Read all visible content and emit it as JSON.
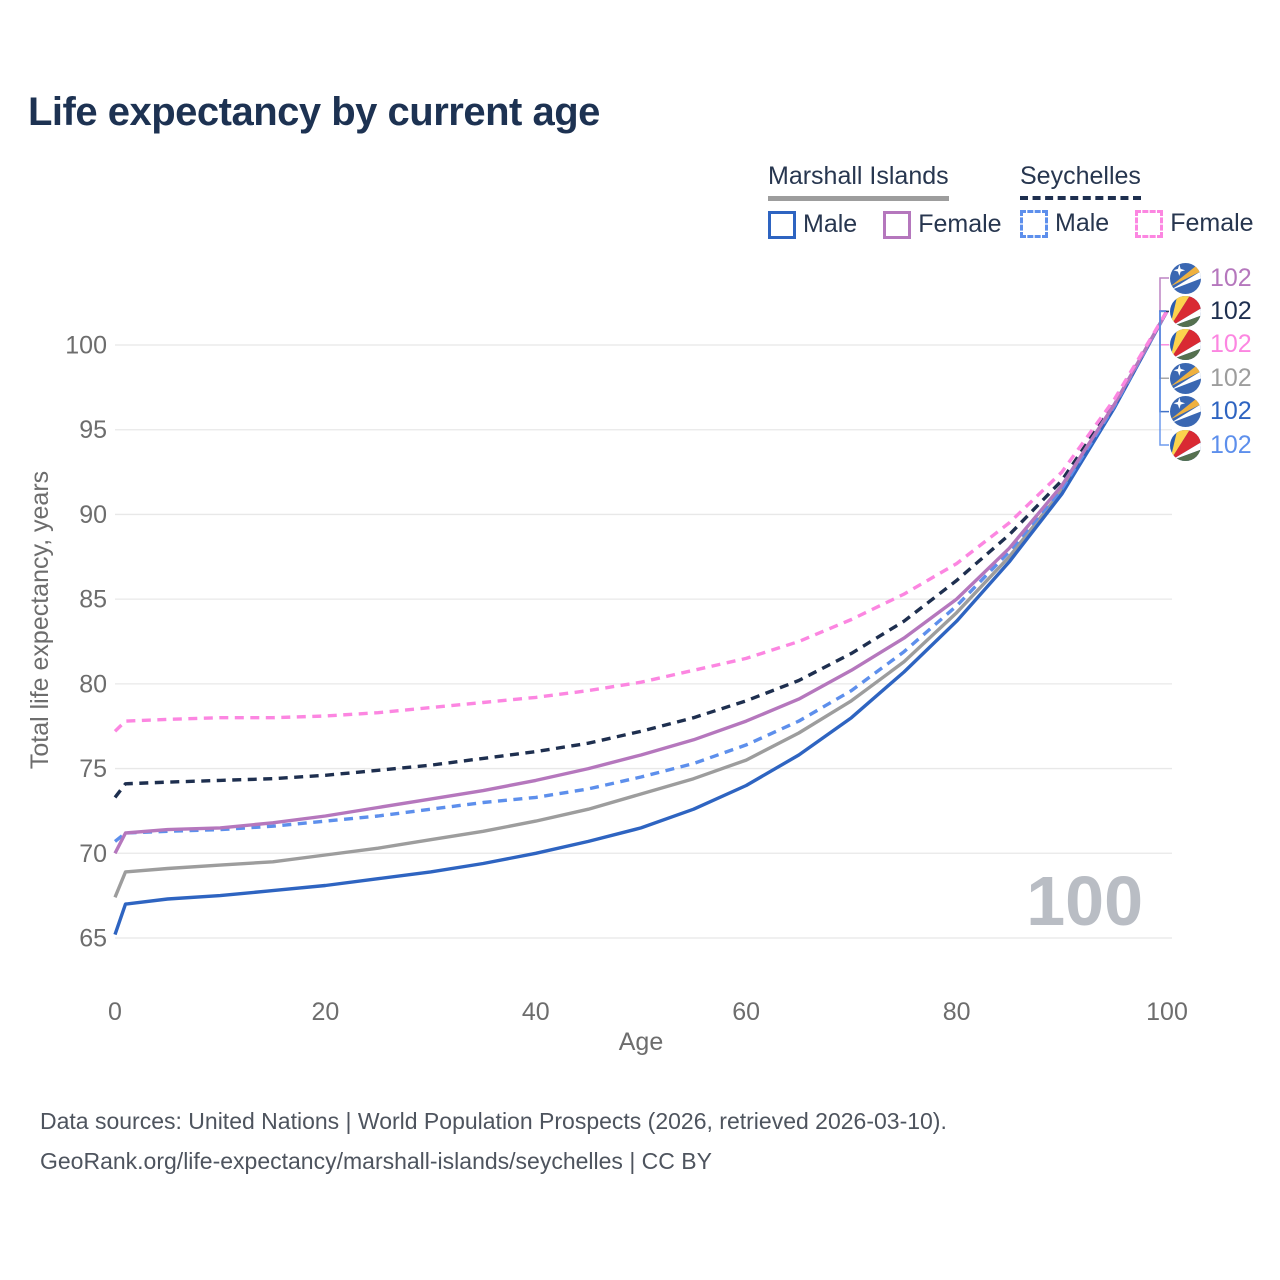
{
  "title": "Life expectancy by current age",
  "legend": {
    "groups": [
      {
        "label": "Marshall Islands",
        "line_style": "solid",
        "line_color": "#9d9d9d",
        "items": [
          {
            "label": "Male",
            "color": "#2e64c1",
            "dashed": false
          },
          {
            "label": "Female",
            "color": "#b577bd",
            "dashed": false
          }
        ]
      },
      {
        "label": "Seychelles",
        "line_style": "dashed",
        "line_color": "#1e2f4f",
        "items": [
          {
            "label": "Male",
            "color": "#5d8fec",
            "dashed": true
          },
          {
            "label": "Female",
            "color": "#fc86e1",
            "dashed": true
          }
        ]
      }
    ]
  },
  "chart_data": {
    "type": "line",
    "title": "Life expectancy by current age",
    "xlabel": "Age",
    "ylabel": "Total life expectancy, years",
    "xlim": [
      0,
      100
    ],
    "ylim": [
      65,
      102
    ],
    "xticks": [
      0,
      20,
      40,
      60,
      80,
      100
    ],
    "yticks": [
      65,
      70,
      75,
      80,
      85,
      90,
      95,
      100
    ],
    "grid": "horizontal",
    "watermark": "100",
    "x": [
      0,
      1,
      5,
      10,
      15,
      20,
      25,
      30,
      35,
      40,
      45,
      50,
      55,
      60,
      65,
      70,
      75,
      80,
      85,
      90,
      95,
      100
    ],
    "series": [
      {
        "name": "Marshall Islands Female",
        "country": "Marshall Islands",
        "sex": "Female",
        "flag": "marshall-islands",
        "color": "#b577bd",
        "dashed": false,
        "z": 4,
        "end_label": "102",
        "values": [
          70.0,
          71.2,
          71.4,
          71.5,
          71.8,
          72.2,
          72.7,
          73.2,
          73.7,
          74.3,
          75.0,
          75.8,
          76.7,
          77.8,
          79.1,
          80.8,
          82.7,
          85.0,
          88.0,
          91.7,
          96.5,
          102.0
        ]
      },
      {
        "name": "Seychelles Total",
        "country": "Seychelles",
        "sex": "Total",
        "flag": "seychelles",
        "color": "#1e2f4f",
        "dashed": true,
        "z": 2,
        "end_label": "102",
        "values": [
          73.3,
          74.1,
          74.2,
          74.3,
          74.4,
          74.6,
          74.9,
          75.2,
          75.6,
          76.0,
          76.5,
          77.2,
          78.0,
          79.0,
          80.2,
          81.8,
          83.7,
          86.1,
          88.8,
          92.0,
          96.6,
          102.0
        ]
      },
      {
        "name": "Seychelles Female",
        "country": "Seychelles",
        "sex": "Female",
        "flag": "seychelles",
        "color": "#fc86e1",
        "dashed": true,
        "z": 5,
        "end_label": "102",
        "values": [
          77.2,
          77.8,
          77.9,
          78.0,
          78.0,
          78.1,
          78.3,
          78.6,
          78.9,
          79.2,
          79.6,
          80.1,
          80.8,
          81.5,
          82.5,
          83.8,
          85.3,
          87.1,
          89.5,
          92.5,
          96.8,
          102.0
        ]
      },
      {
        "name": "Marshall Islands Total",
        "country": "Marshall Islands",
        "sex": "Total",
        "flag": "marshall-islands",
        "color": "#9d9d9d",
        "dashed": false,
        "z": 0,
        "end_label": "102",
        "values": [
          67.4,
          68.9,
          69.1,
          69.3,
          69.5,
          69.9,
          70.3,
          70.8,
          71.3,
          71.9,
          72.6,
          73.5,
          74.4,
          75.5,
          77.1,
          79.0,
          81.3,
          84.2,
          87.5,
          91.4,
          96.4,
          102.0
        ]
      },
      {
        "name": "Marshall Islands Male",
        "country": "Marshall Islands",
        "sex": "Male",
        "flag": "marshall-islands",
        "color": "#2e64c1",
        "dashed": false,
        "z": 1,
        "end_label": "102",
        "values": [
          65.2,
          67.0,
          67.3,
          67.5,
          67.8,
          68.1,
          68.5,
          68.9,
          69.4,
          70.0,
          70.7,
          71.5,
          72.6,
          74.0,
          75.8,
          78.0,
          80.7,
          83.7,
          87.2,
          91.2,
          96.3,
          102.0
        ]
      },
      {
        "name": "Seychelles Male",
        "country": "Seychelles",
        "sex": "Male",
        "flag": "seychelles",
        "color": "#5d8fec",
        "dashed": true,
        "z": 3,
        "end_label": "102",
        "values": [
          70.7,
          71.2,
          71.3,
          71.4,
          71.6,
          71.9,
          72.2,
          72.6,
          73.0,
          73.3,
          73.8,
          74.5,
          75.3,
          76.4,
          77.8,
          79.6,
          81.9,
          84.6,
          87.8,
          91.5,
          96.4,
          102.0
        ]
      }
    ]
  },
  "colors": {
    "title": "#1d3252",
    "axis_text": "#6d6d6d",
    "gridline": "#e8e8e8",
    "watermark": "#b9bdc4",
    "footer_text": "#4e545e"
  },
  "footer": {
    "line1": "Data sources: United Nations | World Population Prospects (2026, retrieved 2026-03-10).",
    "line2": "GeoRank.org/life-expectancy/marshall-islands/seychelles | CC BY"
  }
}
